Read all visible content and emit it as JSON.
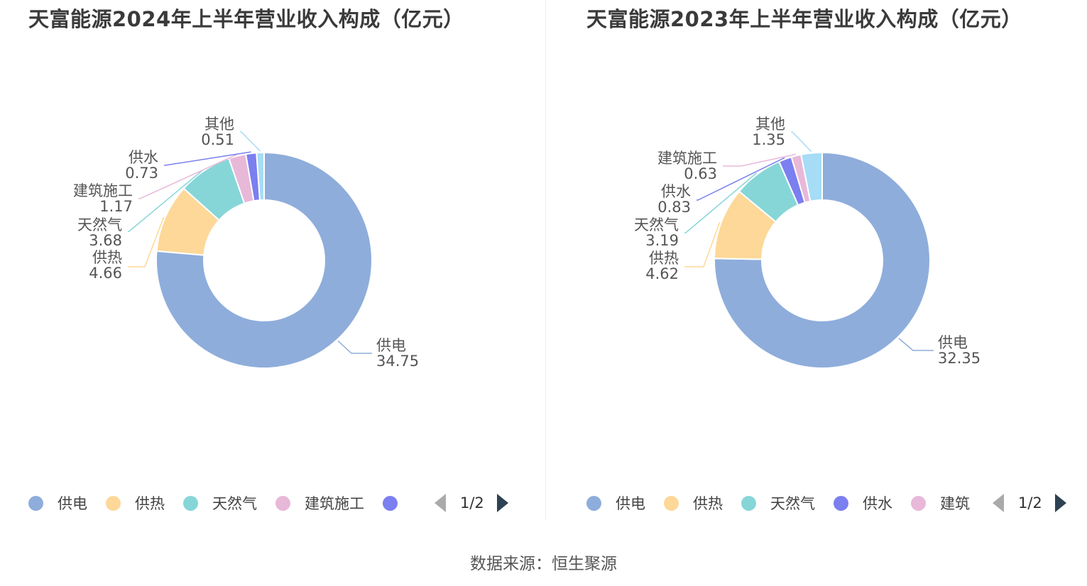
{
  "source": "数据来源：恒生聚源",
  "colors": {
    "供电": "#8eaddb",
    "供热": "#fdd898",
    "天然气": "#86d6d8",
    "建筑施工": "#e8b8d8",
    "供水": "#7b7fef",
    "其他": "#a6dcf6"
  },
  "chart_data": [
    {
      "type": "pie",
      "title": "天富能源2024年上半年营业收入构成（亿元）",
      "unit": "亿元",
      "slices": [
        {
          "name": "供电",
          "value": 34.75,
          "value_label": "34.75"
        },
        {
          "name": "供热",
          "value": 4.66,
          "value_label": "4.66"
        },
        {
          "name": "天然气",
          "value": 3.68,
          "value_label": "3.68"
        },
        {
          "name": "建筑施工",
          "value": 1.17,
          "value_label": "1.17"
        },
        {
          "name": "供水",
          "value": 0.73,
          "value_label": "0.73"
        },
        {
          "name": "其他",
          "value": 0.51,
          "value_label": "0.51"
        }
      ],
      "legend": {
        "items": [
          "供电",
          "供热",
          "天然气",
          "建筑施工",
          ""
        ],
        "dot_colors": [
          "#8eaddb",
          "#fdd898",
          "#86d6d8",
          "#e8b8d8",
          "#7b7fef"
        ],
        "page_indicator": "1/2",
        "position": "bottom"
      }
    },
    {
      "type": "pie",
      "title": "天富能源2023年上半年营业收入构成（亿元）",
      "unit": "亿元",
      "slices": [
        {
          "name": "供电",
          "value": 32.35,
          "value_label": "32.35"
        },
        {
          "name": "供热",
          "value": 4.62,
          "value_label": "4.62"
        },
        {
          "name": "天然气",
          "value": 3.19,
          "value_label": "3.19"
        },
        {
          "name": "供水",
          "value": 0.83,
          "value_label": "0.83"
        },
        {
          "name": "建筑施工",
          "value": 0.63,
          "value_label": "0.63"
        },
        {
          "name": "其他",
          "value": 1.35,
          "value_label": "1.35"
        }
      ],
      "legend": {
        "items": [
          "供电",
          "供热",
          "天然气",
          "供水",
          "建筑"
        ],
        "dot_colors": [
          "#8eaddb",
          "#fdd898",
          "#86d6d8",
          "#7b7fef",
          "#e8b8d8"
        ],
        "page_indicator": "1/2",
        "position": "bottom"
      }
    }
  ]
}
